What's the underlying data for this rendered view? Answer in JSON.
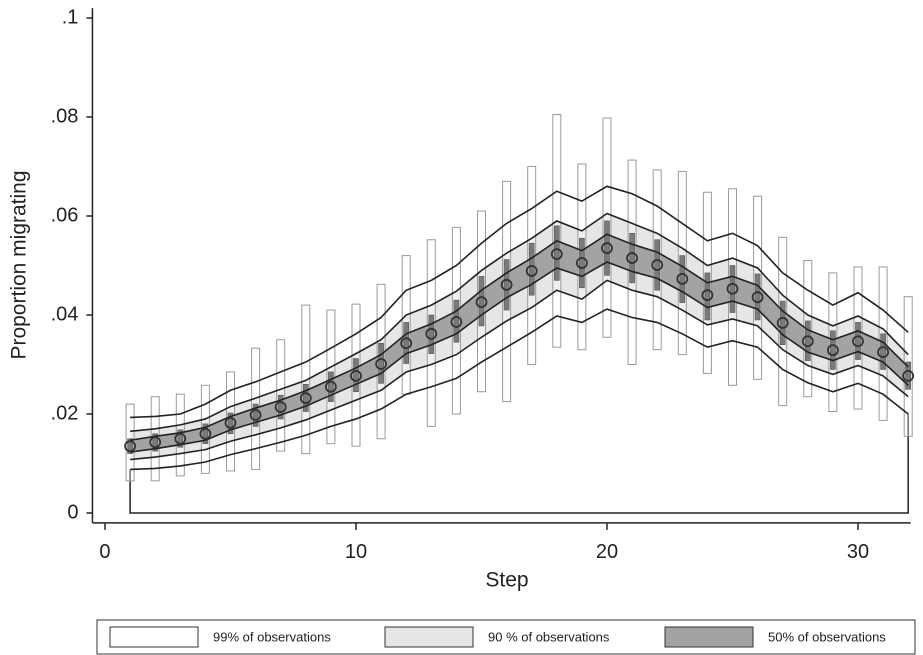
{
  "chart_data": {
    "type": "band",
    "xlabel": "Step",
    "ylabel": "Proportion migrating",
    "xlim": [
      -0.5,
      32.1
    ],
    "xticks": [
      0,
      10,
      20,
      30
    ],
    "ylim": [
      -0.002,
      0.102
    ],
    "yticks": [
      0,
      {
        "value": 0.02,
        "label": ".02"
      },
      {
        "value": 0.04,
        "label": ".04"
      },
      {
        "value": 0.06,
        "label": ".06"
      },
      {
        "value": 0.08,
        "label": ".08"
      },
      {
        "value": 0.1,
        "label": ".1"
      }
    ],
    "x": [
      1,
      2,
      3,
      4,
      5,
      6,
      7,
      8,
      9,
      10,
      11,
      12,
      13,
      14,
      15,
      16,
      17,
      18,
      19,
      20,
      21,
      22,
      23,
      24,
      25,
      26,
      27,
      28,
      29,
      30,
      31,
      32
    ],
    "values": [
      0.0135,
      0.0143,
      0.015,
      0.016,
      0.0182,
      0.0198,
      0.0214,
      0.0232,
      0.0255,
      0.0277,
      0.0301,
      0.0343,
      0.0362,
      0.0386,
      0.0426,
      0.0461,
      0.0489,
      0.0523,
      0.0505,
      0.0535,
      0.0515,
      0.0501,
      0.0473,
      0.044,
      0.0453,
      0.0436,
      0.0384,
      0.0347,
      0.0329,
      0.0347,
      0.0325,
      0.0277
    ],
    "bands": [
      {
        "name": "99% of observations",
        "color": "#ffffff",
        "low": [
          0.0088,
          0.009,
          0.0095,
          0.0103,
          0.0118,
          0.013,
          0.0143,
          0.0157,
          0.0175,
          0.019,
          0.021,
          0.024,
          0.0255,
          0.0272,
          0.0305,
          0.0335,
          0.0365,
          0.0398,
          0.0385,
          0.0412,
          0.0395,
          0.0385,
          0.0362,
          0.0335,
          0.0348,
          0.0335,
          0.029,
          0.0263,
          0.0245,
          0.0262,
          0.024,
          0.02
        ],
        "high": [
          0.0193,
          0.0195,
          0.02,
          0.022,
          0.0248,
          0.0265,
          0.0285,
          0.0305,
          0.0333,
          0.0362,
          0.0395,
          0.045,
          0.047,
          0.05,
          0.0545,
          0.0585,
          0.0615,
          0.065,
          0.063,
          0.066,
          0.0645,
          0.062,
          0.0585,
          0.055,
          0.0565,
          0.054,
          0.0485,
          0.045,
          0.042,
          0.0445,
          0.041,
          0.0365
        ]
      },
      {
        "name": "90 % of observations",
        "color": "#e6e6e6",
        "low": [
          0.0108,
          0.0113,
          0.012,
          0.0128,
          0.0145,
          0.0158,
          0.0172,
          0.0188,
          0.0208,
          0.0228,
          0.0248,
          0.0285,
          0.03,
          0.032,
          0.0355,
          0.0388,
          0.0415,
          0.045,
          0.0432,
          0.047,
          0.045,
          0.0437,
          0.041,
          0.038,
          0.0392,
          0.0378,
          0.033,
          0.0298,
          0.028,
          0.0298,
          0.0277,
          0.0235
        ],
        "high": [
          0.0165,
          0.017,
          0.0178,
          0.019,
          0.0215,
          0.0232,
          0.025,
          0.0268,
          0.0295,
          0.0322,
          0.035,
          0.04,
          0.042,
          0.0448,
          0.049,
          0.0525,
          0.0555,
          0.059,
          0.057,
          0.0605,
          0.0585,
          0.0565,
          0.0535,
          0.05,
          0.0515,
          0.0495,
          0.044,
          0.04,
          0.0378,
          0.0398,
          0.0372,
          0.032
        ]
      },
      {
        "name": "50% of observations",
        "color": "#a3a3a3",
        "low": [
          0.0123,
          0.013,
          0.0138,
          0.0147,
          0.0168,
          0.0183,
          0.0198,
          0.0216,
          0.0238,
          0.026,
          0.0282,
          0.0322,
          0.034,
          0.0362,
          0.04,
          0.0435,
          0.0462,
          0.0495,
          0.0478,
          0.0507,
          0.0488,
          0.0474,
          0.0447,
          0.0415,
          0.0428,
          0.0412,
          0.036,
          0.0325,
          0.0308,
          0.0326,
          0.0305,
          0.0258
        ],
        "high": [
          0.0147,
          0.0155,
          0.0162,
          0.0173,
          0.0195,
          0.0212,
          0.0228,
          0.0247,
          0.027,
          0.0293,
          0.032,
          0.0362,
          0.0382,
          0.0408,
          0.045,
          0.0485,
          0.0515,
          0.055,
          0.053,
          0.0563,
          0.0543,
          0.0527,
          0.0498,
          0.0465,
          0.0478,
          0.046,
          0.0408,
          0.037,
          0.035,
          0.0368,
          0.0345,
          0.0295
        ]
      }
    ],
    "range_bars": {
      "color": "#ffffff",
      "low": [
        0.0065,
        0.0065,
        0.0075,
        0.008,
        0.0085,
        0.0088,
        0.0125,
        0.012,
        0.014,
        0.0135,
        0.015,
        0.024,
        0.0175,
        0.02,
        0.0245,
        0.0225,
        0.03,
        0.0335,
        0.033,
        0.0355,
        0.03,
        0.033,
        0.032,
        0.0282,
        0.0258,
        0.027,
        0.0217,
        0.0235,
        0.0205,
        0.021,
        0.0187,
        0.0155
      ],
      "high": [
        0.022,
        0.0235,
        0.024,
        0.0258,
        0.0285,
        0.0333,
        0.035,
        0.042,
        0.041,
        0.0422,
        0.0462,
        0.052,
        0.0552,
        0.0577,
        0.061,
        0.067,
        0.07,
        0.0805,
        0.0705,
        0.0798,
        0.0713,
        0.0693,
        0.069,
        0.0648,
        0.0655,
        0.064,
        0.0557,
        0.051,
        0.0485,
        0.0497,
        0.0497,
        0.0437
      ]
    },
    "inner_bars": {
      "color": "#7a7a7a",
      "low": [
        0.012,
        0.0125,
        0.0133,
        0.014,
        0.016,
        0.0175,
        0.019,
        0.0205,
        0.0225,
        0.0245,
        0.0262,
        0.0302,
        0.0322,
        0.0345,
        0.0378,
        0.041,
        0.044,
        0.047,
        0.0455,
        0.048,
        0.0465,
        0.045,
        0.0425,
        0.039,
        0.0405,
        0.039,
        0.034,
        0.0308,
        0.029,
        0.031,
        0.029,
        0.025
      ],
      "high": [
        0.015,
        0.016,
        0.0168,
        0.018,
        0.0202,
        0.022,
        0.0238,
        0.026,
        0.0285,
        0.0312,
        0.0343,
        0.0385,
        0.04,
        0.043,
        0.0478,
        0.0512,
        0.0545,
        0.058,
        0.0555,
        0.059,
        0.0565,
        0.0552,
        0.052,
        0.0485,
        0.05,
        0.0483,
        0.0428,
        0.0388,
        0.0368,
        0.0385,
        0.0362,
        0.0305
      ]
    }
  }
}
